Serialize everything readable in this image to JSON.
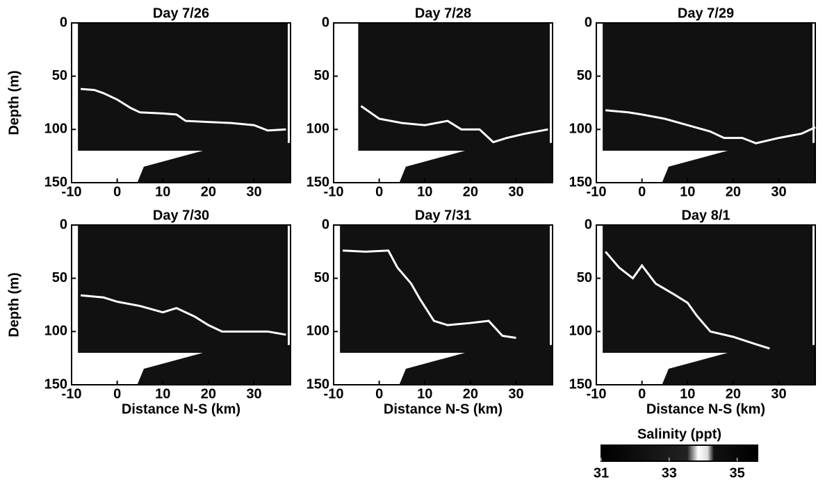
{
  "chart_data": [
    {
      "type": "line",
      "title": "Day 7/26",
      "ylabel": "Depth (m)",
      "x": [
        -8,
        -5,
        -3,
        0,
        3,
        5,
        10,
        13,
        15,
        20,
        25,
        30,
        33,
        37
      ],
      "series": [
        {
          "color": "#ffffff",
          "values": [
            62,
            63,
            66,
            72,
            80,
            84,
            85,
            86,
            92,
            93,
            94,
            96,
            101,
            100
          ]
        }
      ],
      "xlim": [
        -10,
        38
      ],
      "ylim": [
        0,
        150
      ],
      "y_inverted": true,
      "xticks": [
        -10,
        0,
        10,
        20,
        30
      ],
      "yticks": [
        0,
        50,
        100,
        150
      ]
    },
    {
      "type": "line",
      "title": "Day 7/28",
      "x": [
        -4,
        0,
        5,
        10,
        15,
        18,
        22,
        25,
        28,
        32,
        37
      ],
      "series": [
        {
          "color": "#ffffff",
          "values": [
            78,
            90,
            94,
            96,
            92,
            100,
            100,
            112,
            108,
            104,
            100
          ]
        }
      ],
      "xlim": [
        -10,
        38
      ],
      "ylim": [
        0,
        150
      ],
      "y_inverted": true,
      "xticks": [
        -10,
        0,
        10,
        20,
        30
      ],
      "yticks": [
        0,
        50,
        100,
        150
      ]
    },
    {
      "type": "line",
      "title": "Day 7/29",
      "x": [
        -8,
        -3,
        0,
        5,
        10,
        15,
        18,
        22,
        25,
        30,
        35,
        38
      ],
      "series": [
        {
          "color": "#ffffff",
          "values": [
            82,
            84,
            86,
            90,
            96,
            102,
            108,
            108,
            113,
            108,
            104,
            98
          ]
        }
      ],
      "xlim": [
        -10,
        38
      ],
      "ylim": [
        0,
        150
      ],
      "y_inverted": true,
      "xticks": [
        -10,
        0,
        10,
        20,
        30
      ],
      "yticks": [
        0,
        50,
        100,
        150
      ]
    },
    {
      "type": "line",
      "title": "Day 7/30",
      "ylabel": "Depth (m)",
      "xlabel": "Distance N-S (km)",
      "x": [
        -8,
        -3,
        0,
        5,
        10,
        13,
        17,
        20,
        23,
        28,
        33,
        37
      ],
      "series": [
        {
          "color": "#ffffff",
          "values": [
            66,
            68,
            72,
            76,
            82,
            78,
            86,
            94,
            100,
            100,
            100,
            103
          ]
        }
      ],
      "xlim": [
        -10,
        38
      ],
      "ylim": [
        0,
        150
      ],
      "y_inverted": true,
      "xticks": [
        -10,
        0,
        10,
        20,
        30
      ],
      "yticks": [
        0,
        50,
        100,
        150
      ]
    },
    {
      "type": "line",
      "title": "Day 7/31",
      "xlabel": "Distance N-S (km)",
      "x": [
        -8,
        -3,
        2,
        4,
        7,
        9,
        12,
        15,
        20,
        24,
        27,
        30
      ],
      "series": [
        {
          "color": "#ffffff",
          "values": [
            24,
            25,
            24,
            40,
            55,
            70,
            90,
            94,
            92,
            90,
            104,
            106
          ]
        }
      ],
      "xlim": [
        -10,
        38
      ],
      "ylim": [
        0,
        150
      ],
      "y_inverted": true,
      "xticks": [
        -10,
        0,
        10,
        20,
        30
      ],
      "yticks": [
        0,
        50,
        100,
        150
      ]
    },
    {
      "type": "line",
      "title": "Day 8/1",
      "xlabel": "Distance N-S (km)",
      "x": [
        -8,
        -5,
        -2,
        0,
        3,
        7,
        10,
        12,
        15,
        20,
        25,
        28
      ],
      "series": [
        {
          "color": "#ffffff",
          "values": [
            25,
            40,
            50,
            38,
            55,
            65,
            73,
            85,
            100,
            105,
            112,
            116
          ]
        }
      ],
      "xlim": [
        -10,
        38
      ],
      "ylim": [
        0,
        150
      ],
      "y_inverted": true,
      "xticks": [
        -10,
        0,
        10,
        20,
        30
      ],
      "yticks": [
        0,
        50,
        100,
        150
      ]
    }
  ],
  "colorbar": {
    "title": "Salinity (ppt)",
    "lim": [
      31,
      35.6
    ],
    "ticks": [
      31,
      33,
      35
    ]
  }
}
